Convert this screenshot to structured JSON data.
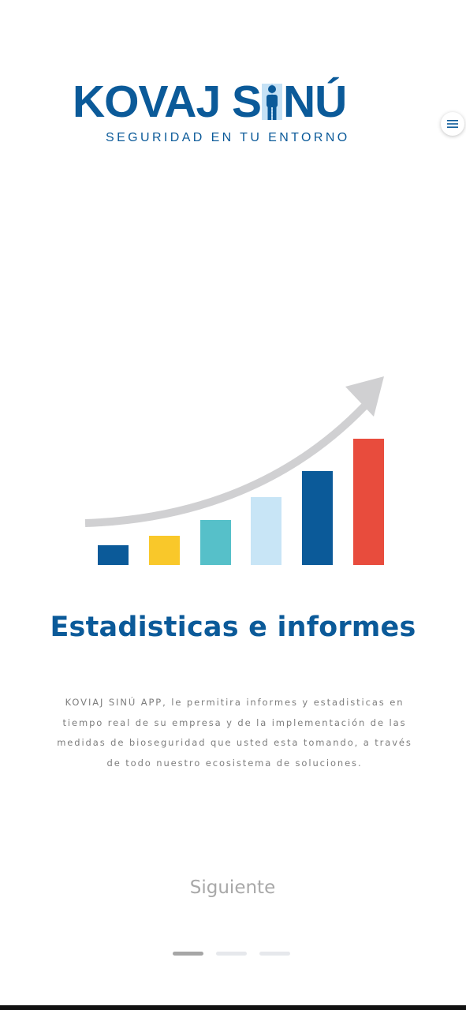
{
  "brand": {
    "title_left": "KOVAJ S",
    "title_right": "NÚ",
    "subtitle": "SEGURIDAD EN TU ENTORNO",
    "color": "#0b5a99",
    "person_icon": "person-icon"
  },
  "menu": {
    "icon": "hamburger-menu-icon",
    "color": "#0b5a99"
  },
  "illustration": {
    "icon": "growth-bar-chart-illustration",
    "bar_colors": [
      "#0b5a99",
      "#f9c82a",
      "#56c0c9",
      "#c8e5f6",
      "#0b5a99",
      "#e84c3d"
    ],
    "arrow_color": "#d0d0d2"
  },
  "slide": {
    "title": "Estadisticas e informes",
    "description_lines": [
      "KOVIAJ SINÚ APP, le permitira informes y estadisticas en",
      "tiempo real de su empresa y de la implementación de las",
      "medidas de bioseguridad que usted esta tomando, a través",
      "de todo nuestro ecosistema de soluciones."
    ]
  },
  "next_button": {
    "label": "Siguiente"
  },
  "pagination": {
    "total": 3,
    "active": 1
  }
}
